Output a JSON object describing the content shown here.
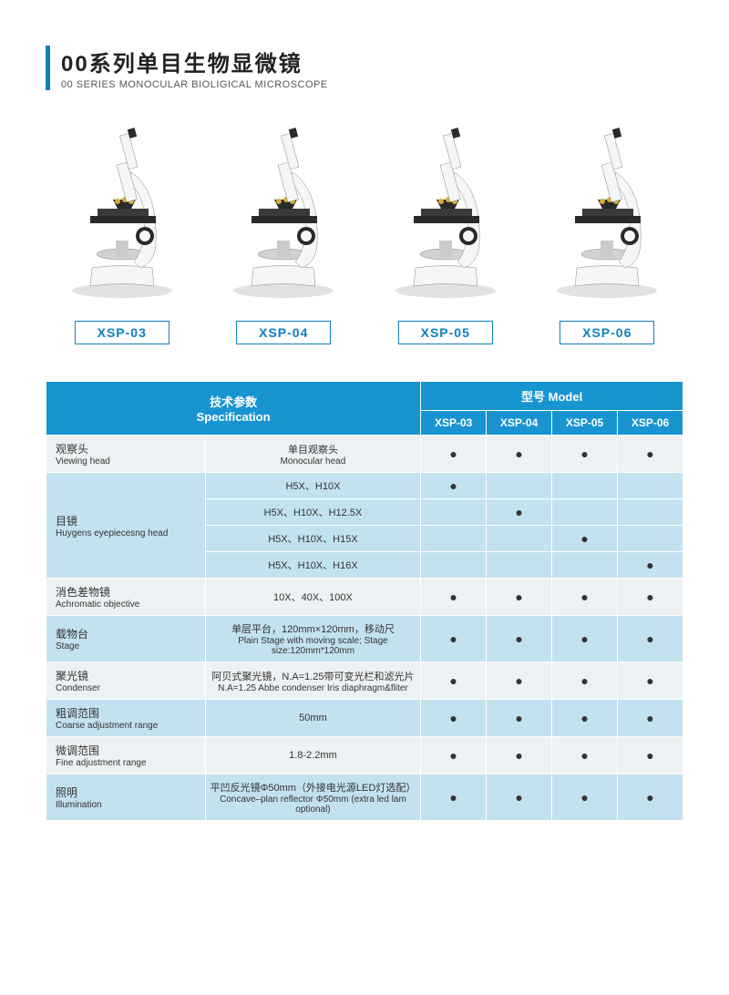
{
  "title": {
    "cn": "00系列单目生物显微镜",
    "en": "00 SERIES MONOCULAR BIOLIGICAL MICROSCOPE"
  },
  "products": [
    "XSP-03",
    "XSP-04",
    "XSP-05",
    "XSP-06"
  ],
  "header": {
    "spec_cn": "技术参数",
    "spec_en": "Specification",
    "model_cn": "型号",
    "model_en": "Model"
  },
  "colors": {
    "accent": "#0d7fc1",
    "header_bg": "#1894d1",
    "row_alt": "#c3e2ef",
    "row_norm": "#eef1f3",
    "microscope_body": "#f5f6f7",
    "microscope_dark": "#2a2a2a"
  },
  "dot": "●",
  "rows": [
    {
      "alt": false,
      "label_cn": "观察头",
      "label_en": "Viewing head",
      "value_cn": "单目观察头",
      "value_en": "Monocular head",
      "marks": [
        true,
        true,
        true,
        true
      ]
    },
    {
      "alt": true,
      "group_label_cn": "目镜",
      "group_label_en": "Huygens eyepiecesng head",
      "group_rows": 4,
      "value_cn": "H5X、H10X",
      "value_en": "",
      "marks": [
        true,
        false,
        false,
        false
      ]
    },
    {
      "alt": true,
      "value_cn": "H5X、H10X、H12.5X",
      "value_en": "",
      "marks": [
        false,
        true,
        false,
        false
      ]
    },
    {
      "alt": true,
      "value_cn": "H5X、H10X、H15X",
      "value_en": "",
      "marks": [
        false,
        false,
        true,
        false
      ]
    },
    {
      "alt": true,
      "value_cn": "H5X、H10X、H16X",
      "value_en": "",
      "marks": [
        false,
        false,
        false,
        true
      ]
    },
    {
      "alt": false,
      "label_cn": "消色差物镜",
      "label_en": "Achromatic objective",
      "value_cn": "10X、40X、100X",
      "value_en": "",
      "marks": [
        true,
        true,
        true,
        true
      ]
    },
    {
      "alt": true,
      "label_cn": "载物台",
      "label_en": "Stage",
      "value_cn": "单层平台，120mm×120mm，移动尺",
      "value_en": "Plain Stage with moving scale; Stage size:120mm*120mm",
      "marks": [
        true,
        true,
        true,
        true
      ]
    },
    {
      "alt": false,
      "label_cn": "聚光镜",
      "label_en": "Condenser",
      "value_cn": "阿贝式聚光镜，N.A=1.25带可变光栏和滤光片",
      "value_en": "N.A=1.25 Abbe condenser Iris diaphragm&fliter",
      "marks": [
        true,
        true,
        true,
        true
      ]
    },
    {
      "alt": true,
      "label_cn": "粗调范围",
      "label_en": "Coarse adjustment range",
      "value_cn": "50mm",
      "value_en": "",
      "marks": [
        true,
        true,
        true,
        true
      ]
    },
    {
      "alt": false,
      "label_cn": "微调范围",
      "label_en": "Fine adjustment range",
      "value_cn": "1.8-2.2mm",
      "value_en": "",
      "marks": [
        true,
        true,
        true,
        true
      ]
    },
    {
      "alt": true,
      "label_cn": "照明",
      "label_en": "Illumination",
      "value_cn": "平凹反光镜Φ50mm（外接电光源LED灯选配）",
      "value_en": "Concave–plan reflector Φ50mm (extra led lam optional)",
      "marks": [
        true,
        true,
        true,
        true
      ]
    }
  ]
}
